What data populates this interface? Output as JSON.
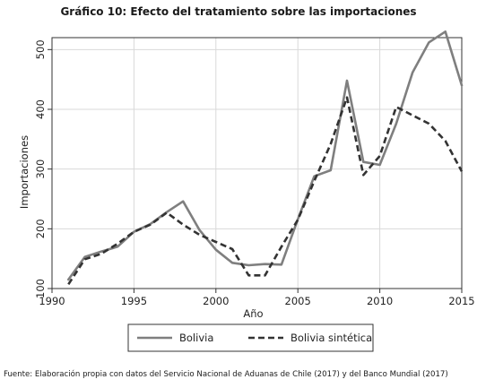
{
  "title": "Gráfico 10: Efecto del tratamiento sobre las importaciones",
  "source": "Fuente: Elaboración propia con datos del Servicio Nacional de Aduanas de Chile (2017) y del Banco Mundial (2017)",
  "chart_data": {
    "type": "line",
    "xlabel": "Año",
    "ylabel": "Importaciones",
    "xlim": [
      1990,
      2015
    ],
    "ylim": [
      100,
      520
    ],
    "xticks": [
      1990,
      1995,
      2000,
      2005,
      2010,
      2015
    ],
    "yticks": [
      100,
      200,
      300,
      400,
      500
    ],
    "grid": true,
    "legend_position": "bottom",
    "x": [
      1991,
      1992,
      1993,
      1994,
      1995,
      1996,
      1997,
      1998,
      1999,
      2000,
      2001,
      2002,
      2003,
      2004,
      2005,
      2006,
      2007,
      2008,
      2009,
      2010,
      2011,
      2012,
      2013,
      2014,
      2015
    ],
    "series": [
      {
        "name": "Bolivia",
        "color": "#7f7f7f",
        "style": "solid",
        "values": [
          115,
          153,
          162,
          170,
          195,
          208,
          228,
          246,
          198,
          165,
          143,
          139,
          141,
          140,
          216,
          288,
          298,
          448,
          312,
          307,
          376,
          462,
          512,
          530,
          440
        ]
      },
      {
        "name": "Bolivia sintética",
        "color": "#333333",
        "style": "dashed",
        "values": [
          107,
          149,
          158,
          175,
          195,
          207,
          227,
          207,
          190,
          178,
          166,
          122,
          122,
          170,
          215,
          280,
          342,
          420,
          290,
          322,
          404,
          390,
          376,
          347,
          296
        ]
      }
    ]
  }
}
